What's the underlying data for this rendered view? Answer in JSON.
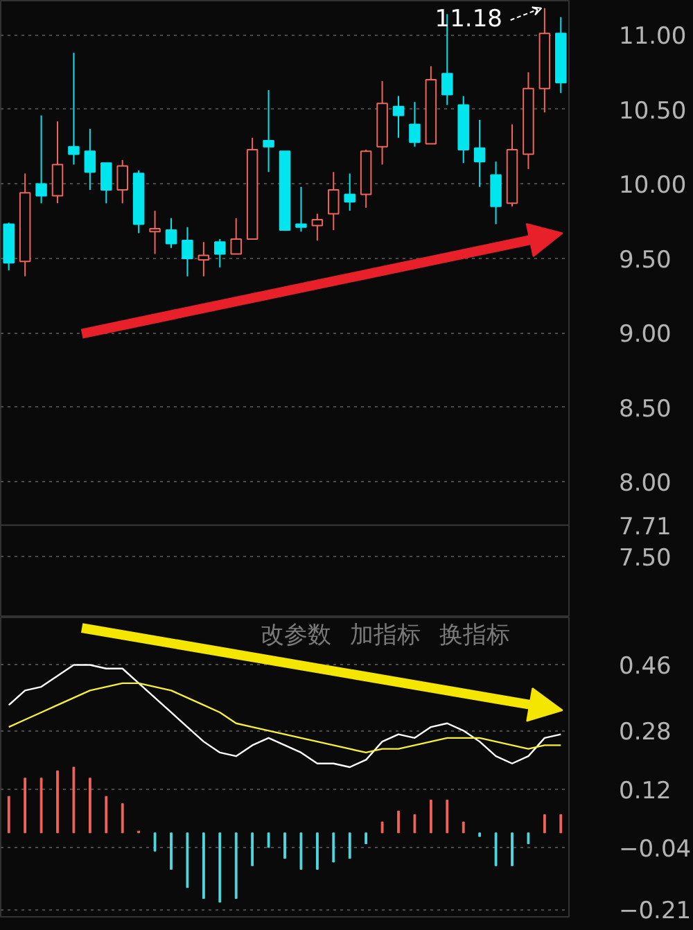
{
  "chart_data": [
    {
      "type": "candlestick",
      "categories": [
        null,
        null,
        null,
        null,
        null,
        null,
        null,
        null,
        null,
        null,
        null,
        null,
        null,
        null,
        null,
        null,
        null,
        null,
        null,
        null,
        null,
        null,
        null,
        null,
        null,
        null,
        null,
        null,
        null,
        null,
        null,
        null,
        null,
        null,
        null
      ],
      "ohlc": [
        [
          9.73,
          9.74,
          9.42,
          9.47
        ],
        [
          9.48,
          10.07,
          9.38,
          9.94
        ],
        [
          10.0,
          10.46,
          9.87,
          9.92
        ],
        [
          9.92,
          10.42,
          9.87,
          10.13
        ],
        [
          10.25,
          10.88,
          10.13,
          10.2
        ],
        [
          10.22,
          10.37,
          9.96,
          10.08
        ],
        [
          10.14,
          10.14,
          9.87,
          9.96
        ],
        [
          9.96,
          10.16,
          9.87,
          10.12
        ],
        [
          10.07,
          10.09,
          9.67,
          9.73
        ],
        [
          9.68,
          9.82,
          9.53,
          9.7
        ],
        [
          9.69,
          9.77,
          9.57,
          9.6
        ],
        [
          9.62,
          9.71,
          9.38,
          9.5
        ],
        [
          9.49,
          9.61,
          9.38,
          9.52
        ],
        [
          9.61,
          9.63,
          9.44,
          9.53
        ],
        [
          9.53,
          9.77,
          9.53,
          9.63
        ],
        [
          9.63,
          10.31,
          9.63,
          10.23
        ],
        [
          10.29,
          10.63,
          10.08,
          10.25
        ],
        [
          10.22,
          10.22,
          9.69,
          9.69
        ],
        [
          9.73,
          9.98,
          9.68,
          9.71
        ],
        [
          9.72,
          9.8,
          9.62,
          9.76
        ],
        [
          9.8,
          10.08,
          9.69,
          9.96
        ],
        [
          9.93,
          10.07,
          9.82,
          9.88
        ],
        [
          9.93,
          10.23,
          9.84,
          10.22
        ],
        [
          10.25,
          10.69,
          10.13,
          10.54
        ],
        [
          10.52,
          10.59,
          10.31,
          10.46
        ],
        [
          10.4,
          10.55,
          10.25,
          10.28
        ],
        [
          10.27,
          10.79,
          10.27,
          10.7
        ],
        [
          10.74,
          11.14,
          10.53,
          10.6
        ],
        [
          10.53,
          10.59,
          10.14,
          10.23
        ],
        [
          10.24,
          10.43,
          9.98,
          10.15
        ],
        [
          10.06,
          10.15,
          9.73,
          9.85
        ],
        [
          9.87,
          10.4,
          9.85,
          10.23
        ],
        [
          10.2,
          10.75,
          10.1,
          10.64
        ],
        [
          10.64,
          11.18,
          10.48,
          11.01
        ],
        [
          11.01,
          11.12,
          10.61,
          10.68
        ]
      ],
      "colors": [
        "#00e5ee",
        "#f0645a",
        "#00e5ee",
        "#f0645a",
        "#00e5ee",
        "#00e5ee",
        "#00e5ee",
        "#f0645a",
        "#00e5ee",
        "#f0645a",
        "#00e5ee",
        "#00e5ee",
        "#f0645a",
        "#00e5ee",
        "#f0645a",
        "#f0645a",
        "#00e5ee",
        "#00e5ee",
        "#00e5ee",
        "#f0645a",
        "#f0645a",
        "#00e5ee",
        "#f0645a",
        "#f0645a",
        "#00e5ee",
        "#00e5ee",
        "#f0645a",
        "#00e5ee",
        "#00e5ee",
        "#00e5ee",
        "#00e5ee",
        "#f0645a",
        "#f0645a",
        "#f0645a",
        "#00e5ee"
      ],
      "ylim": [
        7.09,
        11.23
      ],
      "yticks": [
        {
          "value": 7.5,
          "label": "7.50"
        },
        {
          "value": 8,
          "label": "8.00"
        },
        {
          "value": 8.5,
          "label": "8.50"
        },
        {
          "value": 9,
          "label": "9.00"
        },
        {
          "value": 9.5,
          "label": "9.50"
        },
        {
          "value": 10,
          "label": "10.00"
        },
        {
          "value": 10.5,
          "label": "10.50"
        },
        {
          "value": 11,
          "label": "11.00"
        }
      ],
      "grid": "y",
      "tick_labels": "y",
      "ref_lines": [
        {
          "axis": "y",
          "value": 7.71,
          "label": "7.71",
          "color": "#3a3a3a"
        }
      ],
      "annotations": [
        "11.18"
      ]
    },
    {
      "type": "line",
      "categories": [
        null,
        null,
        null,
        null,
        null,
        null,
        null,
        null,
        null,
        null,
        null,
        null,
        null,
        null,
        null,
        null,
        null,
        null,
        null,
        null,
        null,
        null,
        null,
        null,
        null,
        null,
        null,
        null,
        null,
        null,
        null,
        null,
        null,
        null,
        null
      ],
      "series": [
        {
          "type": "bar",
          "colors": [
            "#f0645a",
            "#f0645a",
            "#f0645a",
            "#f0645a",
            "#f0645a",
            "#f0645a",
            "#f0645a",
            "#f0645a",
            "#f0645a",
            "#4fd8e0",
            "#4fd8e0",
            "#4fd8e0",
            "#4fd8e0",
            "#4fd8e0",
            "#4fd8e0",
            "#4fd8e0",
            "#4fd8e0",
            "#4fd8e0",
            "#4fd8e0",
            "#4fd8e0",
            "#4fd8e0",
            "#4fd8e0",
            "#4fd8e0",
            "#f0645a",
            "#f0645a",
            "#f0645a",
            "#f0645a",
            "#f0645a",
            "#f0645a",
            "#4fd8e0",
            "#4fd8e0",
            "#4fd8e0",
            "#4fd8e0",
            "#f0645a",
            "#f0645a"
          ],
          "values": [
            0.1,
            0.15,
            0.15,
            0.17,
            0.18,
            0.15,
            0.1,
            0.08,
            0.005,
            -0.05,
            -0.1,
            -0.15,
            -0.18,
            -0.19,
            -0.18,
            -0.09,
            -0.04,
            -0.07,
            -0.1,
            -0.1,
            -0.08,
            -0.07,
            -0.03,
            0.03,
            0.06,
            0.05,
            0.09,
            0.09,
            0.03,
            -0.01,
            -0.09,
            -0.09,
            -0.03,
            0.05,
            0.05
          ]
        },
        {
          "type": "line",
          "color": "#ffffff",
          "values": [
            0.35,
            0.39,
            0.4,
            0.43,
            0.46,
            0.46,
            0.45,
            0.45,
            0.41,
            0.37,
            0.33,
            0.29,
            0.25,
            0.22,
            0.21,
            0.24,
            0.26,
            0.24,
            0.22,
            0.19,
            0.19,
            0.18,
            0.2,
            0.25,
            0.27,
            0.26,
            0.29,
            0.3,
            0.28,
            0.25,
            0.21,
            0.19,
            0.21,
            0.26,
            0.27
          ]
        },
        {
          "type": "line",
          "color": "#f5f03c",
          "values": [
            0.29,
            0.31,
            0.33,
            0.35,
            0.37,
            0.39,
            0.4,
            0.41,
            0.41,
            0.4,
            0.39,
            0.37,
            0.35,
            0.33,
            0.3,
            0.29,
            0.28,
            0.27,
            0.26,
            0.25,
            0.24,
            0.23,
            0.22,
            0.23,
            0.23,
            0.24,
            0.25,
            0.26,
            0.26,
            0.26,
            0.25,
            0.24,
            0.23,
            0.24,
            0.24
          ]
        }
      ],
      "ylim": [
        -0.23,
        0.59
      ],
      "yticks": [
        -0.21,
        -0.04,
        0.12,
        0.28,
        0.46
      ],
      "grid": "y",
      "tick_labels": "y",
      "annotations": [
        "改参数",
        "加指标",
        "换指标"
      ]
    }
  ]
}
